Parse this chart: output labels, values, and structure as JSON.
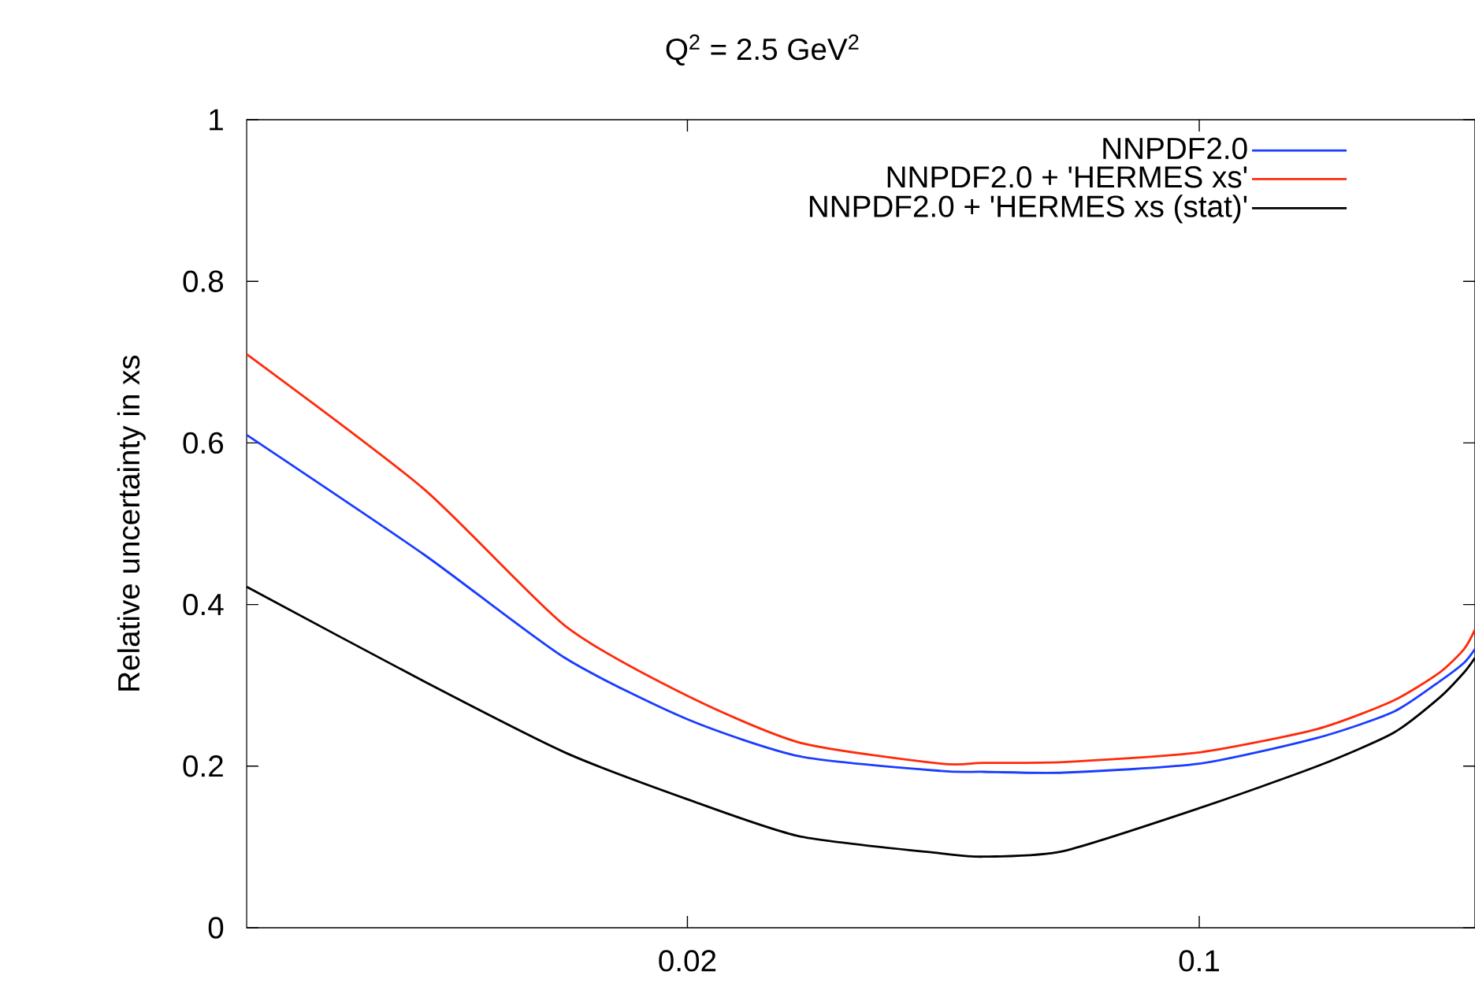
{
  "chart_data": {
    "type": "line",
    "title": "Q$^{2}$ = 2.5 GeV$^{2}$",
    "ylabel": "Relative uncertainty in xs",
    "log": "x",
    "xlim": [
      0.005,
      0.238
    ],
    "xticks": [
      0.02,
      0.1
    ],
    "ylim": [
      0,
      1
    ],
    "yticks": [
      0,
      0.2,
      0.4,
      0.6,
      0.8,
      1
    ],
    "legend": "top right",
    "x": [
      0.005,
      0.00873,
      0.0136,
      0.02,
      0.0285,
      0.0444,
      0.0507,
      0.0653,
      0.1,
      0.145,
      0.184,
      0.213,
      0.23,
      0.238
    ],
    "series": [
      {
        "name": "NNPDF2.0",
        "color": "#1a3cff",
        "values": [
          0.61,
          0.462,
          0.334,
          0.258,
          0.212,
          0.194,
          0.193,
          0.192,
          0.203,
          0.235,
          0.267,
          0.305,
          0.328,
          0.345
        ]
      },
      {
        "name": "NNPDF2.0 + 'HERMES xs'",
        "color": "#ff2a0a",
        "values": [
          0.71,
          0.543,
          0.374,
          0.287,
          0.229,
          0.203,
          0.204,
          0.205,
          0.217,
          0.246,
          0.281,
          0.316,
          0.345,
          0.369
        ]
      },
      {
        "name": "NNPDF2.0 + 'HERMES xs (stat)'",
        "color": "#000000",
        "values": [
          0.422,
          0.305,
          0.217,
          0.159,
          0.113,
          0.092,
          0.088,
          0.095,
          0.148,
          0.2,
          0.241,
          0.285,
          0.316,
          0.334
        ]
      }
    ]
  }
}
